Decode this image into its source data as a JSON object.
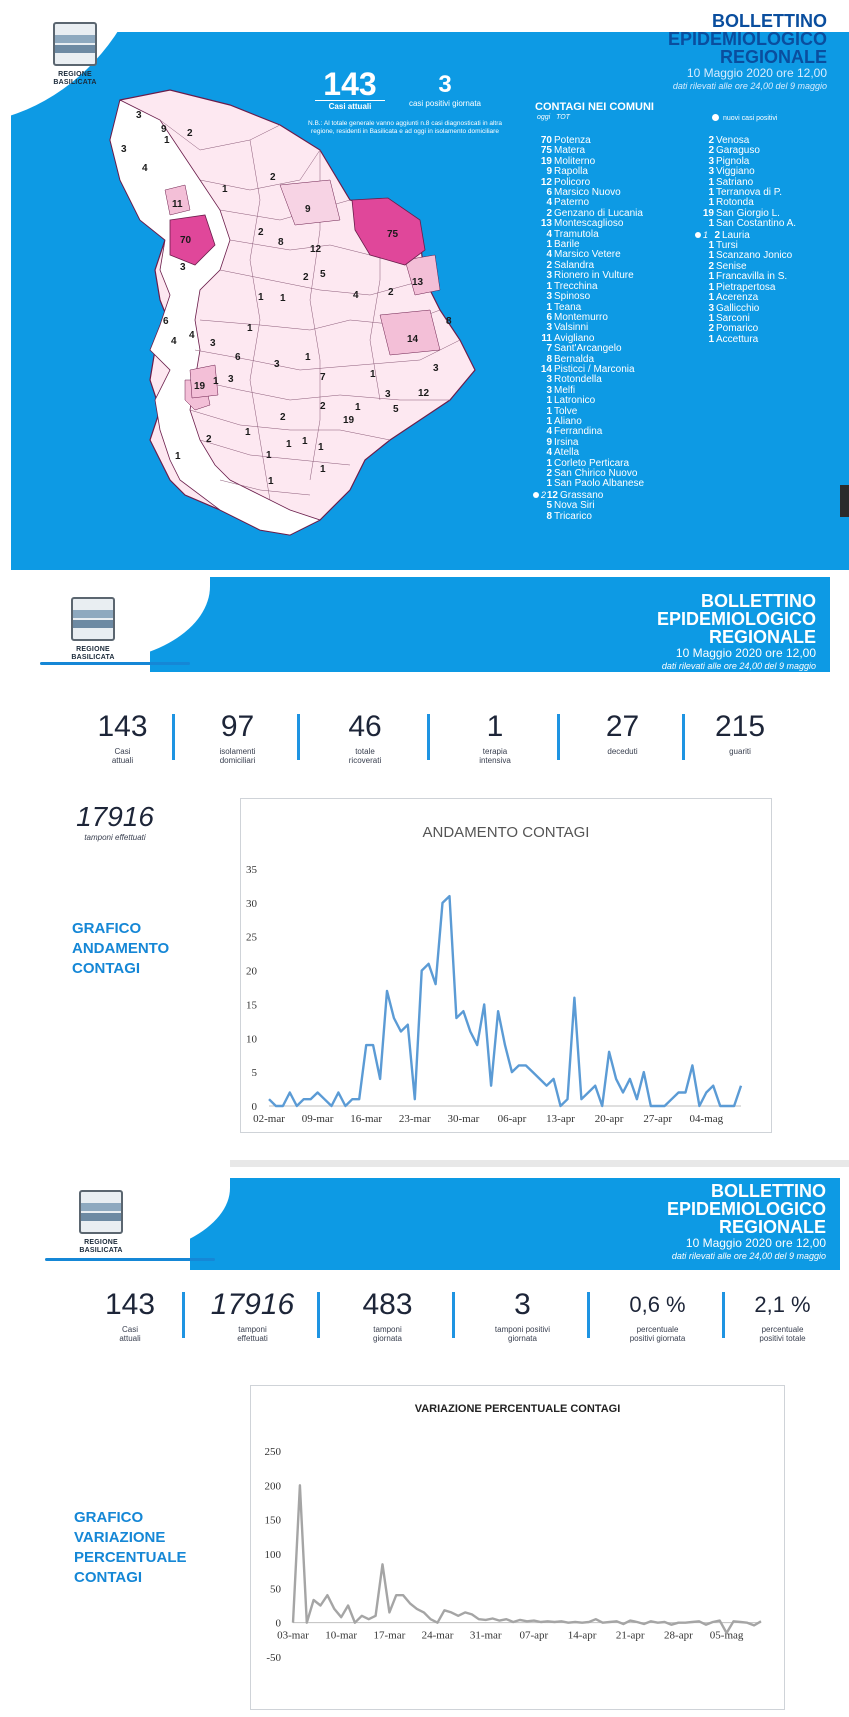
{
  "region": {
    "name_line1": "REGIONE",
    "name_line2": "BASILICATA"
  },
  "bulletin": {
    "line1": "BOLLETTINO",
    "line2": "EPIDEMIOLOGICO",
    "line3": "REGIONALE",
    "date": "10 Maggio 2020 ore 12,00",
    "note": "dati rilevati alle ore 24,00 del 9 maggio"
  },
  "panel1": {
    "casi_attuali_value": "143",
    "casi_attuali_label": "Casi attuali",
    "positivi_giornata_value": "3",
    "positivi_giornata_label": "casi positivi giornata",
    "nb_note": "N.B.: Al totale generale vanno aggiunti n.8 casi diagnosticati in altra regione, residenti in Basilicata e ad oggi in isolamento domiciliare",
    "contagi_title": "CONTAGI NEI COMUNI",
    "col_oggi": "oggi",
    "col_tot": "TOT",
    "legend_new": "nuovi casi positivi",
    "comuni_left": [
      {
        "n": "70",
        "name": "Potenza",
        "new": ""
      },
      {
        "n": "75",
        "name": "Matera",
        "new": ""
      },
      {
        "n": "19",
        "name": "Moliterno",
        "new": ""
      },
      {
        "n": "9",
        "name": "Rapolla",
        "new": ""
      },
      {
        "n": "12",
        "name": "Policoro",
        "new": ""
      },
      {
        "n": "6",
        "name": "Marsico Nuovo",
        "new": ""
      },
      {
        "n": "4",
        "name": "Paterno",
        "new": ""
      },
      {
        "n": "2",
        "name": "Genzano di Lucania",
        "new": ""
      },
      {
        "n": "13",
        "name": "Montescaglioso",
        "new": ""
      },
      {
        "n": "4",
        "name": "Tramutola",
        "new": ""
      },
      {
        "n": "1",
        "name": "Barile",
        "new": ""
      },
      {
        "n": "4",
        "name": "Marsico Vetere",
        "new": ""
      },
      {
        "n": "2",
        "name": "Salandra",
        "new": ""
      },
      {
        "n": "3",
        "name": "Rionero in Vulture",
        "new": ""
      },
      {
        "n": "1",
        "name": "Trecchina",
        "new": ""
      },
      {
        "n": "3",
        "name": "Spinoso",
        "new": ""
      },
      {
        "n": "1",
        "name": "Teana",
        "new": ""
      },
      {
        "n": "6",
        "name": "Montemurro",
        "new": ""
      },
      {
        "n": "3",
        "name": "Valsinni",
        "new": ""
      },
      {
        "n": "11",
        "name": "Avigliano",
        "new": ""
      },
      {
        "n": "7",
        "name": "Sant'Arcangelo",
        "new": ""
      },
      {
        "n": "8",
        "name": "Bernalda",
        "new": ""
      },
      {
        "n": "14",
        "name": "Pisticci / Marconia",
        "new": ""
      },
      {
        "n": "3",
        "name": "Rotondella",
        "new": ""
      },
      {
        "n": "3",
        "name": "Melfi",
        "new": ""
      },
      {
        "n": "1",
        "name": "Latronico",
        "new": ""
      },
      {
        "n": "1",
        "name": "Tolve",
        "new": ""
      },
      {
        "n": "1",
        "name": "Aliano",
        "new": ""
      },
      {
        "n": "4",
        "name": "Ferrandina",
        "new": ""
      },
      {
        "n": "9",
        "name": "Irsina",
        "new": ""
      },
      {
        "n": "4",
        "name": "Atella",
        "new": ""
      },
      {
        "n": "1",
        "name": "Corleto Perticara",
        "new": ""
      },
      {
        "n": "2",
        "name": "San Chirico Nuovo",
        "new": ""
      },
      {
        "n": "1",
        "name": "San Paolo Albanese",
        "new": ""
      },
      {
        "n": "12",
        "name": "Grassano",
        "new": "2"
      },
      {
        "n": "5",
        "name": "Nova Siri",
        "new": ""
      },
      {
        "n": "8",
        "name": "Tricarico",
        "new": ""
      }
    ],
    "comuni_right": [
      {
        "n": "2",
        "name": "Venosa",
        "new": ""
      },
      {
        "n": "2",
        "name": "Garaguso",
        "new": ""
      },
      {
        "n": "3",
        "name": "Pignola",
        "new": ""
      },
      {
        "n": "3",
        "name": "Viggiano",
        "new": ""
      },
      {
        "n": "1",
        "name": "Satriano",
        "new": ""
      },
      {
        "n": "1",
        "name": "Terranova di P.",
        "new": ""
      },
      {
        "n": "1",
        "name": "Rotonda",
        "new": ""
      },
      {
        "n": "19",
        "name": "San Giorgio L.",
        "new": ""
      },
      {
        "n": "1",
        "name": "San Costantino A.",
        "new": ""
      },
      {
        "n": "2",
        "name": "Lauria",
        "new": "1"
      },
      {
        "n": "1",
        "name": "Tursi",
        "new": ""
      },
      {
        "n": "1",
        "name": "Scanzano Jonico",
        "new": ""
      },
      {
        "n": "2",
        "name": "Senise",
        "new": ""
      },
      {
        "n": "1",
        "name": "Francavilla in S.",
        "new": ""
      },
      {
        "n": "1",
        "name": "Pietrapertosa",
        "new": ""
      },
      {
        "n": "1",
        "name": "Acerenza",
        "new": ""
      },
      {
        "n": "3",
        "name": "Gallicchio",
        "new": ""
      },
      {
        "n": "1",
        "name": "Sarconi",
        "new": ""
      },
      {
        "n": "2",
        "name": "Pomarico",
        "new": ""
      },
      {
        "n": "1",
        "name": "Accettura",
        "new": ""
      }
    ],
    "map_labels": [
      "3",
      "9",
      "1",
      "2",
      "3",
      "4",
      "1",
      "2",
      "11",
      "9",
      "70",
      "2",
      "8",
      "12",
      "75",
      "3",
      "2",
      "5",
      "1",
      "1",
      "4",
      "2",
      "13",
      "6",
      "8",
      "4",
      "3",
      "1",
      "4",
      "14",
      "6",
      "3",
      "1",
      "3",
      "7",
      "1",
      "19",
      "1",
      "3",
      "3",
      "12",
      "1",
      "2",
      "5",
      "2",
      "19",
      "1",
      "1",
      "1",
      "1",
      "1",
      "1",
      "2",
      "1",
      "1"
    ]
  },
  "panel2": {
    "stats": [
      {
        "value": "143",
        "label": "Casi\nattuali"
      },
      {
        "value": "97",
        "label": "isolamenti\ndomiciliari"
      },
      {
        "value": "46",
        "label": "totale\nricoverati"
      },
      {
        "value": "1",
        "label": "terapia\nintensiva"
      },
      {
        "value": "27",
        "label": "deceduti"
      },
      {
        "value": "215",
        "label": "guariti"
      }
    ],
    "tamponi_value": "17916",
    "tamponi_label": "tamponi\neffettuati",
    "side_label": [
      "GRAFICO",
      "ANDAMENTO",
      "CONTAGI"
    ]
  },
  "panel3": {
    "stats": [
      {
        "value": "143",
        "label": "Casi\nattuali"
      },
      {
        "value": "17916",
        "label": "tamponi\neffettuati"
      },
      {
        "value": "483",
        "label": "tamponi\ngiornata"
      },
      {
        "value": "3",
        "label": "tamponi positivi\ngiornata"
      },
      {
        "value": "0,6 %",
        "label": "percentuale\npositivi giornata"
      },
      {
        "value": "2,1 %",
        "label": "percentuale\npositivi totale"
      }
    ],
    "side_label": [
      "GRAFICO",
      "VARIAZIONE",
      "PERCENTUALE",
      "CONTAGI"
    ]
  },
  "colors": {
    "brand_blue": "#0d9ae4",
    "line_blue": "#5b9bd5",
    "line_gray": "#a5a5a5",
    "map_pink": "#e0479a",
    "map_light": "#f8d6e6"
  },
  "chart_data": [
    {
      "type": "line",
      "title": "ANDAMENTO CONTAGI",
      "xlabel": "",
      "ylabel": "",
      "ylim": [
        0,
        35
      ],
      "yticks": [
        0,
        5,
        10,
        15,
        20,
        25,
        30,
        35
      ],
      "x_tick_labels": [
        "02-mar",
        "09-mar",
        "16-mar",
        "23-mar",
        "30-mar",
        "06-apr",
        "13-apr",
        "20-apr",
        "27-apr",
        "04-mag"
      ],
      "x_start": "02-mar",
      "x_end": "09-mag",
      "grid": false,
      "series": [
        {
          "values": [
            1,
            0,
            0,
            2,
            0,
            1,
            1,
            2,
            1,
            0,
            2,
            0,
            1,
            1,
            9,
            9,
            4,
            17,
            13,
            11,
            12,
            1,
            20,
            21,
            18,
            30,
            31,
            13,
            14,
            11,
            9,
            15,
            3,
            14,
            9,
            5,
            6,
            6,
            5,
            4,
            3,
            4,
            0,
            1,
            16,
            1,
            2,
            3,
            0,
            8,
            4,
            2,
            4,
            1,
            5,
            0,
            0,
            0,
            1,
            2,
            2,
            6,
            0,
            2,
            3,
            0,
            0,
            0,
            3
          ]
        }
      ]
    },
    {
      "type": "line",
      "title": "VARIAZIONE PERCENTUALE CONTAGI",
      "xlabel": "",
      "ylabel": "",
      "ylim": [
        -50,
        250
      ],
      "yticks": [
        -50,
        0,
        50,
        100,
        150,
        200,
        250
      ],
      "x_tick_labels": [
        "03-mar",
        "10-mar",
        "17-mar",
        "24-mar",
        "31-mar",
        "07-apr",
        "14-apr",
        "21-apr",
        "28-apr",
        "05-mag"
      ],
      "x_start": "03-mar",
      "x_end": "09-mag",
      "grid": false,
      "series": [
        {
          "values": [
            0,
            200,
            0,
            33,
            25,
            40,
            20,
            8,
            25,
            0,
            10,
            5,
            10,
            85,
            15,
            40,
            40,
            28,
            20,
            15,
            5,
            0,
            18,
            15,
            10,
            15,
            12,
            5,
            4,
            6,
            3,
            5,
            1,
            4,
            2,
            3,
            1,
            2,
            1,
            2,
            0,
            1,
            0,
            1,
            5,
            0,
            1,
            2,
            -2,
            3,
            1,
            -2,
            2,
            0,
            1,
            -3,
            0,
            0,
            1,
            2,
            -3,
            1,
            3,
            -15,
            2,
            1,
            0,
            -4,
            2
          ]
        }
      ]
    }
  ]
}
